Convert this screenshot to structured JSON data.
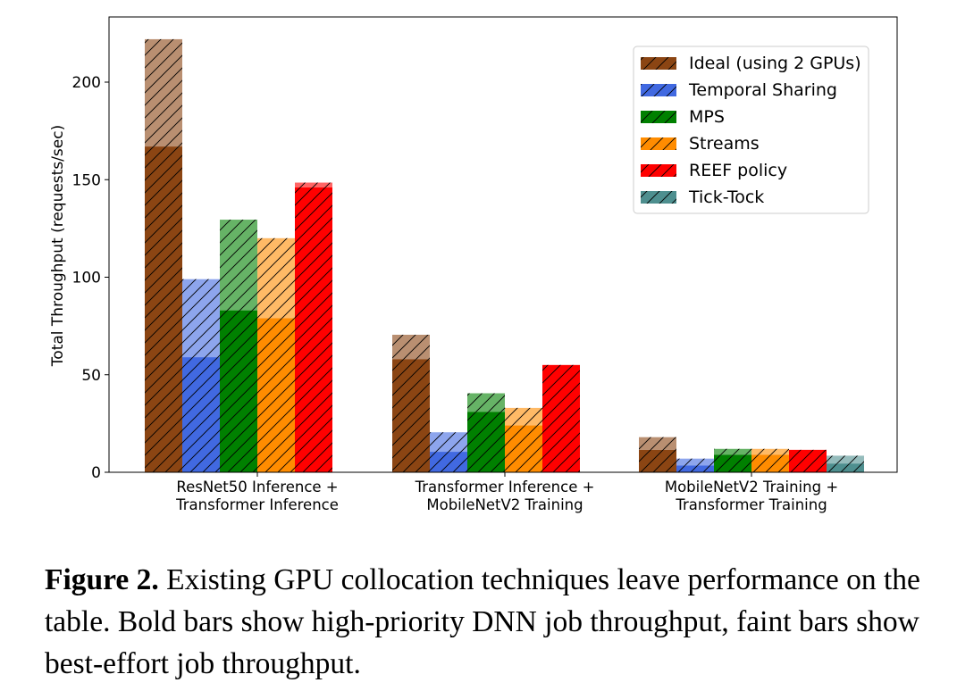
{
  "chart_data": {
    "type": "bar",
    "stacked_segments": [
      "high_priority",
      "best_effort"
    ],
    "categories": [
      [
        "ResNet50 Inference +",
        "Transformer Inference"
      ],
      [
        "Transformer Inference +",
        "MobileNetV2 Training"
      ],
      [
        "MobileNetV2 Training +",
        "Transformer Training"
      ]
    ],
    "ylabel": "Total Throughput (requests/sec)",
    "xlabel": "",
    "ylim": [
      0,
      230
    ],
    "yticks": [
      0,
      50,
      100,
      150,
      200
    ],
    "legend_position": "top-right",
    "series": [
      {
        "name": "Ideal (using 2 GPUs)",
        "color": "#8B4513",
        "high_priority": [
          167,
          58,
          11.5
        ],
        "best_effort": [
          55,
          12.5,
          6.5
        ]
      },
      {
        "name": "Temporal Sharing",
        "color": "#4169E1",
        "high_priority": [
          59,
          10.5,
          3.5
        ],
        "best_effort": [
          40,
          10,
          3.5
        ]
      },
      {
        "name": "MPS",
        "color": "#008000",
        "high_priority": [
          83,
          31,
          9
        ],
        "best_effort": [
          46.5,
          9.5,
          3
        ]
      },
      {
        "name": "Streams",
        "color": "#FF8C00",
        "high_priority": [
          79,
          24,
          9
        ],
        "best_effort": [
          41,
          9,
          3
        ]
      },
      {
        "name": "REEF policy",
        "color": "#FF0000",
        "high_priority": [
          146,
          55,
          11.5
        ],
        "best_effort": [
          2.5,
          0,
          0
        ]
      },
      {
        "name": "Tick-Tock",
        "color": "#4E8F8F",
        "high_priority": [
          null,
          null,
          4.5
        ],
        "best_effort": [
          null,
          null,
          4
        ]
      }
    ]
  },
  "caption": {
    "label": "Figure 2.",
    "text": " Existing GPU collocation techniques leave performance on the table. Bold bars show high-priority DNN job throughput, faint bars show best-effort job throughput."
  }
}
